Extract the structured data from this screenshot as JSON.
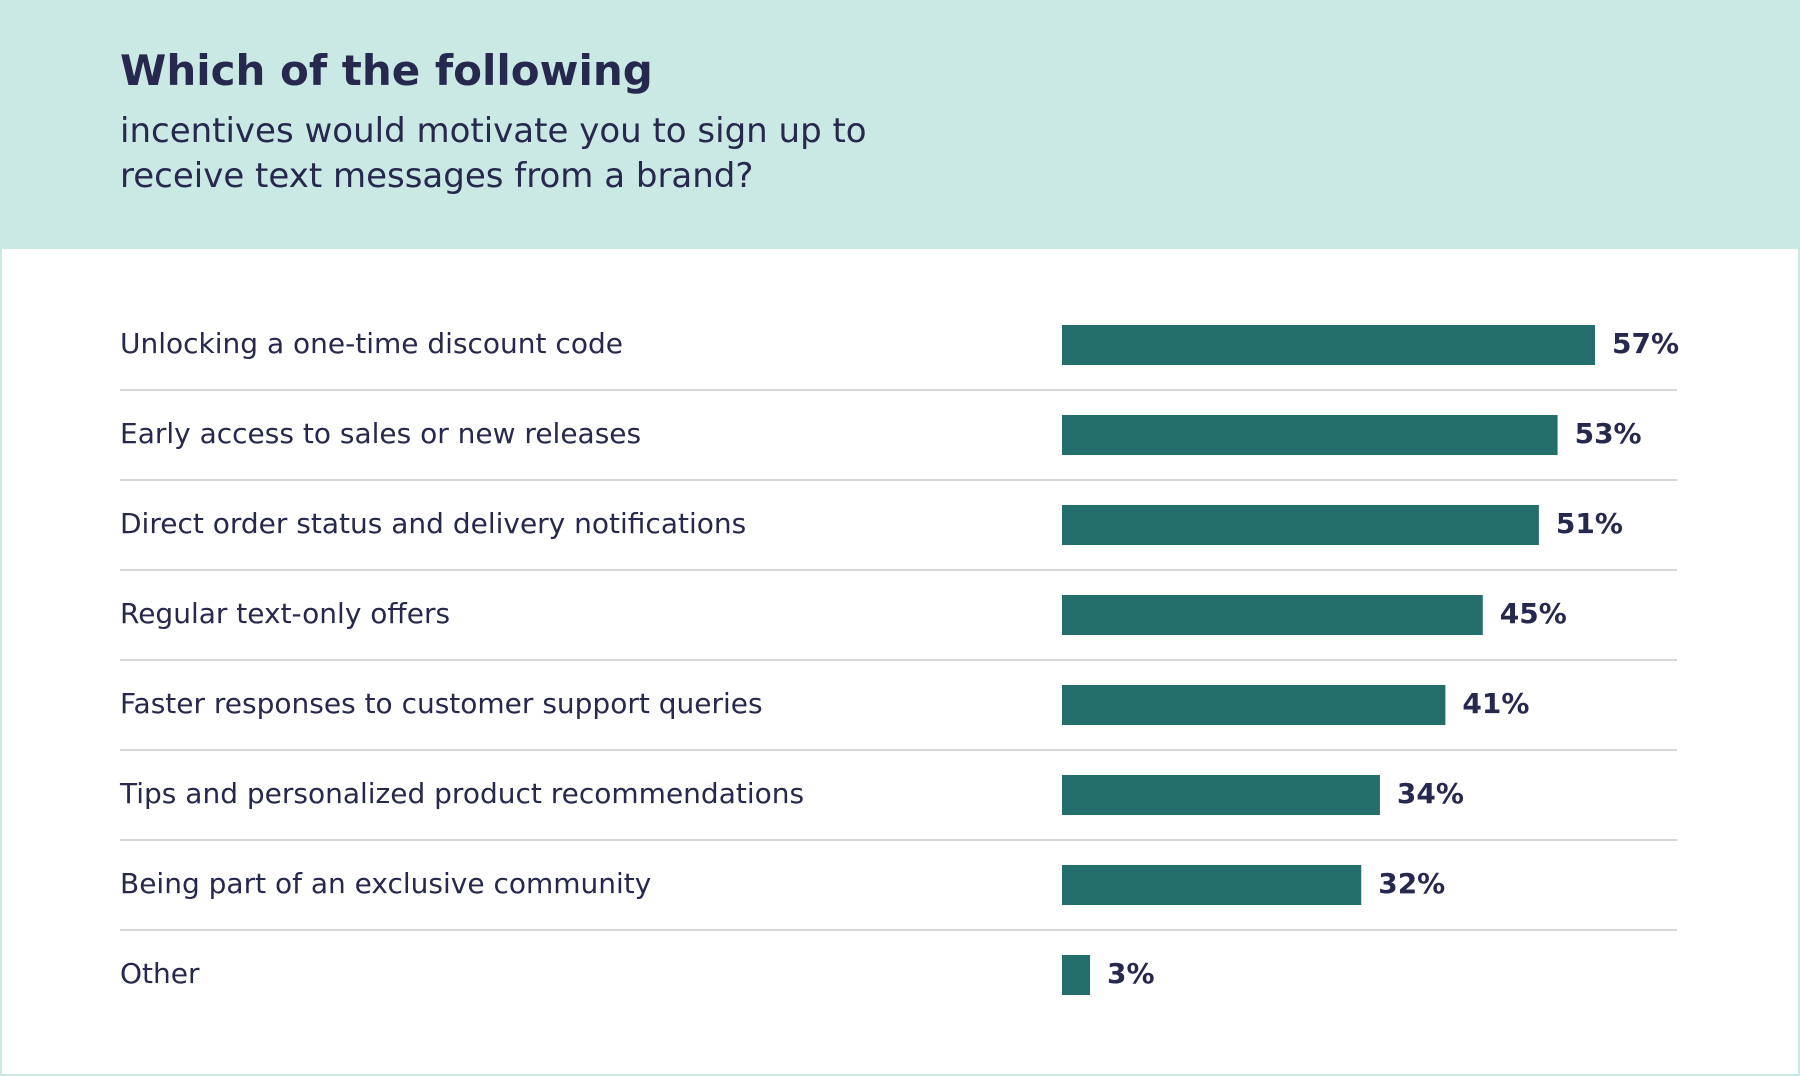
{
  "header": {
    "title": "Which of the following",
    "subtitle": "incentives would motivate you to sign up to receive text messages from a brand?"
  },
  "colors": {
    "header_bg": "#cbe9e4",
    "bar": "#236e6b",
    "text": "#26284d",
    "divider": "#d6d6d6"
  },
  "chart_data": {
    "type": "bar",
    "orientation": "horizontal",
    "title": "Which of the following incentives would motivate you to sign up to receive text messages from a brand?",
    "categories": [
      "Unlocking a one-time discount code",
      "Early access to sales or new releases",
      "Direct order status and delivery notifications",
      "Regular text-only offers",
      "Faster responses to customer support queries",
      "Tips and personalized product recommendations",
      "Being part of an exclusive community",
      "Other"
    ],
    "values": [
      57,
      53,
      51,
      45,
      41,
      34,
      32,
      3
    ],
    "value_labels": [
      "57%",
      "53%",
      "51%",
      "45%",
      "41%",
      "34%",
      "32%",
      "3%"
    ],
    "unit": "%",
    "xlim": [
      0,
      57
    ],
    "grid": false,
    "legend": "none"
  }
}
